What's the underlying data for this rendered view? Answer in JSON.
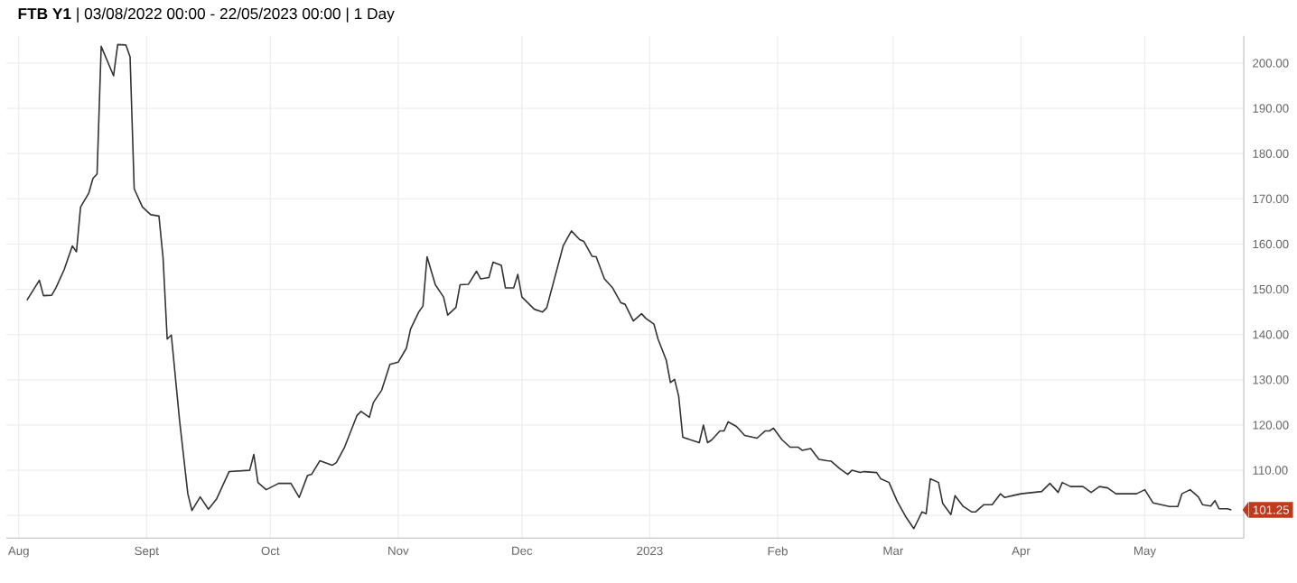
{
  "chart_data": {
    "type": "line",
    "title": "**FTB Y1** | 03/08/2022 00:00 - 22/05/2023 00:00 | 1 Day",
    "color": "#333333",
    "grid": true,
    "xlim": [
      "2022-07-29",
      "2023-05-25"
    ],
    "ylim": [
      95,
      206
    ],
    "xticks": [
      {
        "value": "2022-08-01",
        "label": "Aug"
      },
      {
        "value": "2022-09-01",
        "label": "Sept"
      },
      {
        "value": "2022-10-01",
        "label": "Oct"
      },
      {
        "value": "2022-11-01",
        "label": "Nov"
      },
      {
        "value": "2022-12-01",
        "label": "Dec"
      },
      {
        "value": "2023-01-01",
        "label": "2023"
      },
      {
        "value": "2023-02-01",
        "label": "Feb"
      },
      {
        "value": "2023-03-01",
        "label": "Mar"
      },
      {
        "value": "2023-04-01",
        "label": "Apr"
      },
      {
        "value": "2023-05-01",
        "label": "May"
      }
    ],
    "yticks": [
      {
        "value": 100,
        "label": null
      },
      {
        "value": 110,
        "label": "110.00"
      },
      {
        "value": 120,
        "label": "120.00"
      },
      {
        "value": 130,
        "label": "130.00"
      },
      {
        "value": 140,
        "label": "140.00"
      },
      {
        "value": 150,
        "label": "150.00"
      },
      {
        "value": 160,
        "label": "160.00"
      },
      {
        "value": 170,
        "label": "170.00"
      },
      {
        "value": 180,
        "label": "180.00"
      },
      {
        "value": 190,
        "label": "190.00"
      },
      {
        "value": 200,
        "label": "200.00"
      }
    ],
    "annotations": [
      {
        "text": "101.25",
        "x": "2023-05-22",
        "y": 101.25
      }
    ],
    "x": [
      "2022-08-03",
      "2022-08-06",
      "2022-08-07",
      "2022-08-09",
      "2022-08-10",
      "2022-08-12",
      "2022-08-14",
      "2022-08-15",
      "2022-08-16",
      "2022-08-18",
      "2022-08-19",
      "2022-08-20",
      "2022-08-21",
      "2022-08-24",
      "2022-08-25",
      "2022-08-27",
      "2022-08-28",
      "2022-08-29",
      "2022-08-31",
      "2022-09-02",
      "2022-09-04",
      "2022-09-05",
      "2022-09-06",
      "2022-09-07",
      "2022-09-09",
      "2022-09-11",
      "2022-09-12",
      "2022-09-14",
      "2022-09-16",
      "2022-09-18",
      "2022-09-21",
      "2022-09-26",
      "2022-09-27",
      "2022-09-28",
      "2022-09-30",
      "2022-10-03",
      "2022-10-06",
      "2022-10-08",
      "2022-10-10",
      "2022-10-11",
      "2022-10-13",
      "2022-10-16",
      "2022-10-17",
      "2022-10-19",
      "2022-10-22",
      "2022-10-23",
      "2022-10-25",
      "2022-10-26",
      "2022-10-28",
      "2022-10-30",
      "2022-11-01",
      "2022-11-03",
      "2022-11-04",
      "2022-11-06",
      "2022-11-07",
      "2022-11-08",
      "2022-11-10",
      "2022-11-12",
      "2022-11-13",
      "2022-11-15",
      "2022-11-16",
      "2022-11-18",
      "2022-11-20",
      "2022-11-21",
      "2022-11-23",
      "2022-11-24",
      "2022-11-26",
      "2022-11-27",
      "2022-11-29",
      "2022-11-30",
      "2022-12-01",
      "2022-12-04",
      "2022-12-06",
      "2022-12-07",
      "2022-12-11",
      "2022-12-13",
      "2022-12-15",
      "2022-12-16",
      "2022-12-18",
      "2022-12-19",
      "2022-12-21",
      "2022-12-23",
      "2022-12-25",
      "2022-12-26",
      "2022-12-28",
      "2022-12-30",
      "2022-12-31",
      "2023-01-02",
      "2023-01-03",
      "2023-01-05",
      "2023-01-06",
      "2023-01-07",
      "2023-01-08",
      "2023-01-09",
      "2023-01-12",
      "2023-01-13",
      "2023-01-14",
      "2023-01-15",
      "2023-01-16",
      "2023-01-18",
      "2023-01-19",
      "2023-01-20",
      "2023-01-22",
      "2023-01-24",
      "2023-01-26",
      "2023-01-27",
      "2023-01-29",
      "2023-01-30",
      "2023-01-31",
      "2023-02-02",
      "2023-02-04",
      "2023-02-06",
      "2023-02-07",
      "2023-02-09",
      "2023-02-11",
      "2023-02-13",
      "2023-02-14",
      "2023-02-16",
      "2023-02-18",
      "2023-02-19",
      "2023-02-21",
      "2023-02-22",
      "2023-02-25",
      "2023-02-26",
      "2023-02-28",
      "2023-03-02",
      "2023-03-04",
      "2023-03-06",
      "2023-03-08",
      "2023-03-09",
      "2023-03-10",
      "2023-03-12",
      "2023-03-13",
      "2023-03-15",
      "2023-03-16",
      "2023-03-18",
      "2023-03-20",
      "2023-03-21",
      "2023-03-23",
      "2023-03-25",
      "2023-03-27",
      "2023-03-28",
      "2023-03-30",
      "2023-04-01",
      "2023-04-04",
      "2023-04-06",
      "2023-04-08",
      "2023-04-10",
      "2023-04-11",
      "2023-04-13",
      "2023-04-16",
      "2023-04-18",
      "2023-04-20",
      "2023-04-22",
      "2023-04-24",
      "2023-04-27",
      "2023-04-29",
      "2023-05-01",
      "2023-05-03",
      "2023-05-05",
      "2023-05-07",
      "2023-05-09",
      "2023-05-10",
      "2023-05-12",
      "2023-05-14",
      "2023-05-15",
      "2023-05-17",
      "2023-05-18",
      "2023-05-19",
      "2023-05-21",
      "2023-05-22"
    ],
    "values": [
      147.6,
      152.0,
      148.6,
      148.7,
      150.3,
      154.3,
      159.6,
      158.3,
      168.2,
      171.3,
      174.5,
      175.5,
      203.7,
      197.2,
      204.1,
      204.0,
      201.4,
      172.2,
      168.2,
      166.5,
      166.2,
      156.9,
      139.0,
      139.9,
      121.0,
      104.8,
      101.1,
      104.1,
      101.4,
      103.7,
      109.7,
      110.0,
      113.5,
      107.3,
      105.7,
      107.1,
      107.1,
      104.0,
      108.8,
      109.1,
      112.1,
      111.1,
      111.7,
      115.1,
      122.1,
      123.0,
      121.7,
      125.0,
      127.7,
      133.4,
      133.9,
      137.0,
      141.2,
      145.0,
      146.3,
      157.2,
      151.0,
      148.3,
      144.3,
      146.0,
      151.0,
      151.1,
      154.0,
      152.3,
      152.6,
      156.0,
      155.3,
      150.3,
      150.3,
      153.3,
      148.3,
      145.6,
      145.0,
      145.9,
      159.6,
      162.9,
      161.0,
      160.6,
      157.3,
      157.2,
      152.3,
      150.3,
      147.0,
      146.7,
      143.0,
      144.6,
      143.6,
      142.3,
      139.0,
      134.3,
      129.4,
      130.1,
      126.4,
      117.3,
      116.4,
      116.1,
      120.0,
      116.1,
      116.7,
      118.7,
      118.7,
      120.7,
      119.7,
      117.7,
      117.3,
      117.1,
      118.7,
      118.7,
      119.3,
      116.8,
      115.1,
      115.1,
      114.4,
      114.8,
      112.4,
      112.1,
      112.0,
      110.4,
      109.1,
      110.0,
      109.5,
      109.7,
      109.5,
      108.1,
      107.3,
      103.1,
      99.8,
      97.1,
      100.8,
      100.4,
      108.1,
      107.3,
      102.7,
      100.2,
      104.4,
      102.0,
      100.8,
      100.8,
      102.4,
      102.4,
      104.8,
      104.0,
      104.4,
      104.8,
      105.1,
      105.3,
      107.1,
      105.1,
      107.3,
      106.4,
      106.4,
      105.1,
      106.4,
      106.1,
      104.8,
      104.8,
      104.8,
      105.7,
      102.8,
      102.4,
      102.0,
      102.0,
      104.8,
      105.7,
      104.1,
      102.4,
      102.1,
      103.3,
      101.5,
      101.5,
      101.25
    ]
  }
}
